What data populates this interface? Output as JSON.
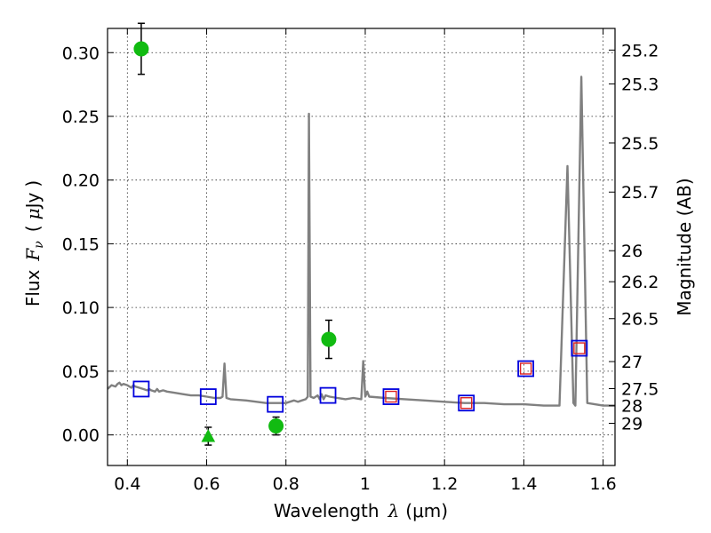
{
  "chart_data": {
    "type": "scatter",
    "title": "",
    "xlabel_prefix": "Wavelength",
    "xlabel_sym": "λ",
    "xlabel_unit": "(μm)",
    "ylabel_prefix": "Flux",
    "ylabel_sym": "F",
    "ylabel_sub": "ν",
    "ylabel_unit_open": "(",
    "ylabel_unit_mu": "μ",
    "ylabel_unit_rest": "Jy",
    "ylabel_unit_close": ")",
    "y2label": "Magnitude (AB)",
    "xlim": [
      0.35,
      1.63
    ],
    "ylim": [
      -0.024,
      0.319
    ],
    "grid": true,
    "x_ticks": [
      {
        "v": 0.4,
        "label": "0.4"
      },
      {
        "v": 0.6,
        "label": "0.6"
      },
      {
        "v": 0.8,
        "label": "0.8"
      },
      {
        "v": 1.0,
        "label": "1"
      },
      {
        "v": 1.2,
        "label": "1.2"
      },
      {
        "v": 1.4,
        "label": "1.4"
      },
      {
        "v": 1.6,
        "label": "1.6"
      }
    ],
    "y_ticks": [
      {
        "v": 0.0,
        "label": "0.00"
      },
      {
        "v": 0.05,
        "label": "0.05"
      },
      {
        "v": 0.1,
        "label": "0.10"
      },
      {
        "v": 0.15,
        "label": "0.15"
      },
      {
        "v": 0.2,
        "label": "0.20"
      },
      {
        "v": 0.25,
        "label": "0.25"
      },
      {
        "v": 0.3,
        "label": "0.30"
      }
    ],
    "y2_ticks": [
      {
        "mag": 25.2,
        "label": "25.2"
      },
      {
        "mag": 25.3,
        "label": "25.3"
      },
      {
        "mag": 25.5,
        "label": "25.5"
      },
      {
        "mag": 25.7,
        "label": "25.7"
      },
      {
        "mag": 26.0,
        "label": "26"
      },
      {
        "mag": 26.2,
        "label": "26.2"
      },
      {
        "mag": 26.5,
        "label": "26.5"
      },
      {
        "mag": 27.0,
        "label": "27"
      },
      {
        "mag": 27.5,
        "label": "27.5"
      },
      {
        "mag": 28.0,
        "label": "28"
      },
      {
        "mag": 29.0,
        "label": "29"
      }
    ],
    "series": [
      {
        "type": "line",
        "color": "#808080",
        "points": [
          [
            0.35,
            0.036
          ],
          [
            0.36,
            0.039
          ],
          [
            0.37,
            0.038
          ],
          [
            0.375,
            0.04
          ],
          [
            0.38,
            0.041
          ],
          [
            0.385,
            0.039
          ],
          [
            0.39,
            0.04
          ],
          [
            0.4,
            0.039
          ],
          [
            0.41,
            0.037
          ],
          [
            0.415,
            0.039
          ],
          [
            0.42,
            0.038
          ],
          [
            0.43,
            0.037
          ],
          [
            0.44,
            0.036
          ],
          [
            0.45,
            0.035
          ],
          [
            0.455,
            0.036
          ],
          [
            0.46,
            0.035
          ],
          [
            0.47,
            0.034
          ],
          [
            0.475,
            0.036
          ],
          [
            0.48,
            0.034
          ],
          [
            0.49,
            0.035
          ],
          [
            0.5,
            0.034
          ],
          [
            0.52,
            0.033
          ],
          [
            0.54,
            0.032
          ],
          [
            0.56,
            0.031
          ],
          [
            0.58,
            0.031
          ],
          [
            0.6,
            0.03
          ],
          [
            0.62,
            0.029
          ],
          [
            0.635,
            0.029
          ],
          [
            0.64,
            0.03
          ],
          [
            0.645,
            0.056
          ],
          [
            0.65,
            0.029
          ],
          [
            0.66,
            0.028
          ],
          [
            0.7,
            0.027
          ],
          [
            0.75,
            0.025
          ],
          [
            0.78,
            0.025
          ],
          [
            0.8,
            0.025
          ],
          [
            0.82,
            0.027
          ],
          [
            0.83,
            0.026
          ],
          [
            0.84,
            0.027
          ],
          [
            0.85,
            0.028
          ],
          [
            0.855,
            0.03
          ],
          [
            0.858,
            0.252
          ],
          [
            0.862,
            0.03
          ],
          [
            0.87,
            0.029
          ],
          [
            0.88,
            0.031
          ],
          [
            0.885,
            0.028
          ],
          [
            0.89,
            0.032
          ],
          [
            0.895,
            0.028
          ],
          [
            0.9,
            0.031
          ],
          [
            0.91,
            0.03
          ],
          [
            0.93,
            0.029
          ],
          [
            0.95,
            0.028
          ],
          [
            0.97,
            0.029
          ],
          [
            0.99,
            0.028
          ],
          [
            0.995,
            0.058
          ],
          [
            1.0,
            0.03
          ],
          [
            1.005,
            0.034
          ],
          [
            1.01,
            0.03
          ],
          [
            1.05,
            0.029
          ],
          [
            1.1,
            0.028
          ],
          [
            1.15,
            0.027
          ],
          [
            1.2,
            0.026
          ],
          [
            1.25,
            0.025
          ],
          [
            1.3,
            0.025
          ],
          [
            1.35,
            0.024
          ],
          [
            1.4,
            0.024
          ],
          [
            1.45,
            0.023
          ],
          [
            1.49,
            0.023
          ],
          [
            1.51,
            0.211
          ],
          [
            1.525,
            0.025
          ],
          [
            1.53,
            0.023
          ],
          [
            1.545,
            0.281
          ],
          [
            1.56,
            0.025
          ],
          [
            1.6,
            0.023
          ],
          [
            1.63,
            0.023
          ]
        ]
      },
      {
        "type": "points",
        "marker": "circle",
        "color": "#11bb11",
        "points": [
          {
            "x": 0.435,
            "y": 0.303,
            "err": 0.02
          },
          {
            "x": 0.775,
            "y": 0.007,
            "err": 0.007
          },
          {
            "x": 0.908,
            "y": 0.075,
            "err": 0.015
          }
        ]
      },
      {
        "type": "points",
        "marker": "triangle",
        "color": "#11bb11",
        "points": [
          {
            "x": 0.604,
            "y": -0.001,
            "err": 0.007
          }
        ]
      },
      {
        "type": "points",
        "marker": "square",
        "color": "#0000dd",
        "points": [
          {
            "x": 0.435,
            "y": 0.036
          },
          {
            "x": 0.604,
            "y": 0.03
          },
          {
            "x": 0.773,
            "y": 0.024
          },
          {
            "x": 0.906,
            "y": 0.031
          },
          {
            "x": 1.065,
            "y": 0.03
          },
          {
            "x": 1.255,
            "y": 0.025
          },
          {
            "x": 1.405,
            "y": 0.052
          },
          {
            "x": 1.54,
            "y": 0.068
          }
        ]
      },
      {
        "type": "points",
        "marker": "square-small",
        "color": "#dd2222",
        "points": [
          {
            "x": 1.065,
            "y": 0.03
          },
          {
            "x": 1.255,
            "y": 0.025
          },
          {
            "x": 1.405,
            "y": 0.052
          },
          {
            "x": 1.54,
            "y": 0.068
          }
        ]
      }
    ]
  }
}
